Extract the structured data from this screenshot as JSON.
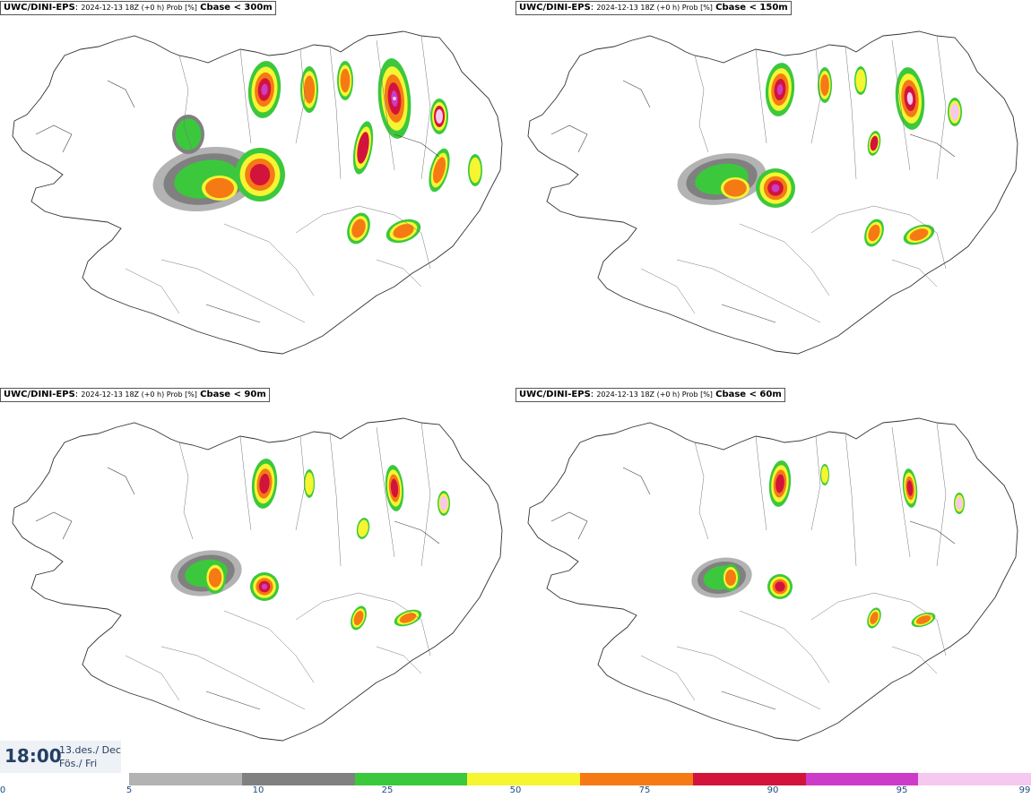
{
  "panels": [
    {
      "model": "UWC/DINI-EPS",
      "meta": "2024-12-13 18Z (+0 h) Prob [%]",
      "threshold": "Cbase < 300m"
    },
    {
      "model": "UWC/DINI-EPS",
      "meta": "2024-12-13 18Z (+0 h) Prob [%]",
      "threshold": "Cbase < 150m"
    },
    {
      "model": "UWC/DINI-EPS",
      "meta": "2024-12-13 18Z (+0 h) Prob [%]",
      "threshold": "Cbase < 90m"
    },
    {
      "model": "UWC/DINI-EPS",
      "meta": "2024-12-13 18Z (+0 h) Prob [%]",
      "threshold": "Cbase < 60m"
    }
  ],
  "timebox": {
    "time": "18:00",
    "date_line1": "13.des./ Dec",
    "date_line2": "Fös./ Fri"
  },
  "colorbar": {
    "ticks": [
      "0",
      "5",
      "10",
      "25",
      "50",
      "75",
      "90",
      "95",
      "99"
    ],
    "colors": [
      "#b3b3b3",
      "#808080",
      "#3cc83c",
      "#f5f532",
      "#f57a14",
      "#d2143c",
      "#cd3cc8",
      "#f5c8f0"
    ]
  },
  "legend_colors": {
    "gray_light": "#b3b3b3",
    "gray_dark": "#808080",
    "green": "#3cc83c",
    "yellow": "#f5f532",
    "orange": "#f57a14",
    "red": "#d2143c",
    "magenta": "#cd3cc8",
    "pink": "#f5c8f0"
  }
}
